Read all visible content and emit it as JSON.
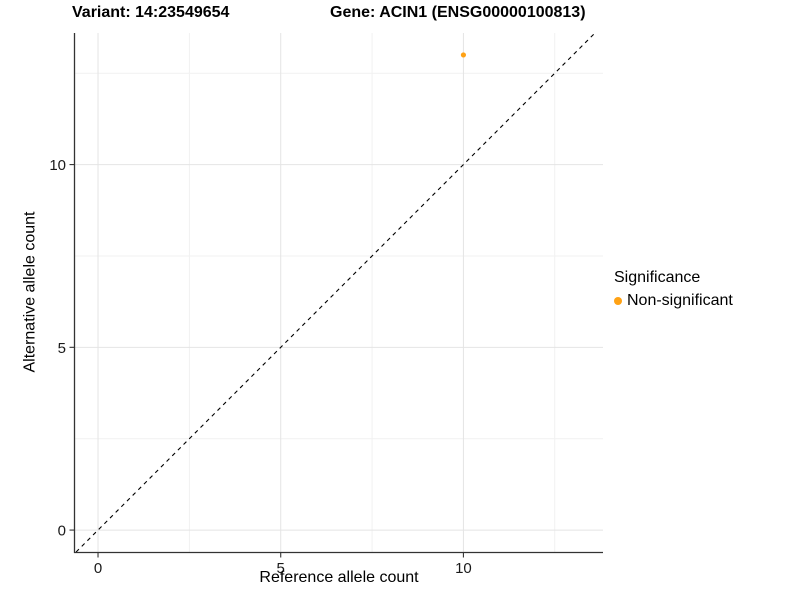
{
  "chart_data": {
    "type": "scatter",
    "title_left": "Variant: 14:23549654",
    "title_right": "Gene: ACIN1 (ENSG00000100813)",
    "xlabel": "Reference allele count",
    "ylabel": "Alternative allele count",
    "xlim": [
      -0.63,
      13.82
    ],
    "ylim": [
      -0.6,
      13.6
    ],
    "x_ticks": [
      0,
      5,
      10
    ],
    "x_tick_labels": [
      "0",
      "5",
      "10"
    ],
    "y_ticks": [
      0,
      5,
      10
    ],
    "y_tick_labels": [
      "0",
      "5",
      "10"
    ],
    "x_minor_ticks": [
      2.5,
      7.5,
      12.5
    ],
    "y_minor_ticks": [
      2.5,
      7.5,
      12.5
    ],
    "grid": true,
    "legend_position": "right",
    "legend": {
      "title": "Significance",
      "items": [
        {
          "label": "Non-significant",
          "color": "#FFA215"
        }
      ]
    },
    "series": [
      {
        "name": "Non-significant",
        "color": "#FFA215",
        "points": [
          {
            "x": 10,
            "y": 13
          }
        ]
      }
    ],
    "reference_line": {
      "type": "identity",
      "slope": 1,
      "intercept": 0,
      "style": "dashed",
      "color": "#000000"
    },
    "style": {
      "major_grid_color": "#e4e4e4",
      "minor_grid_color": "#f1f1f1",
      "axis_line_color": "#333333",
      "tick_color": "#333333",
      "tick_label_color": "#1a1a1a",
      "panel_background": "#ffffff"
    }
  }
}
